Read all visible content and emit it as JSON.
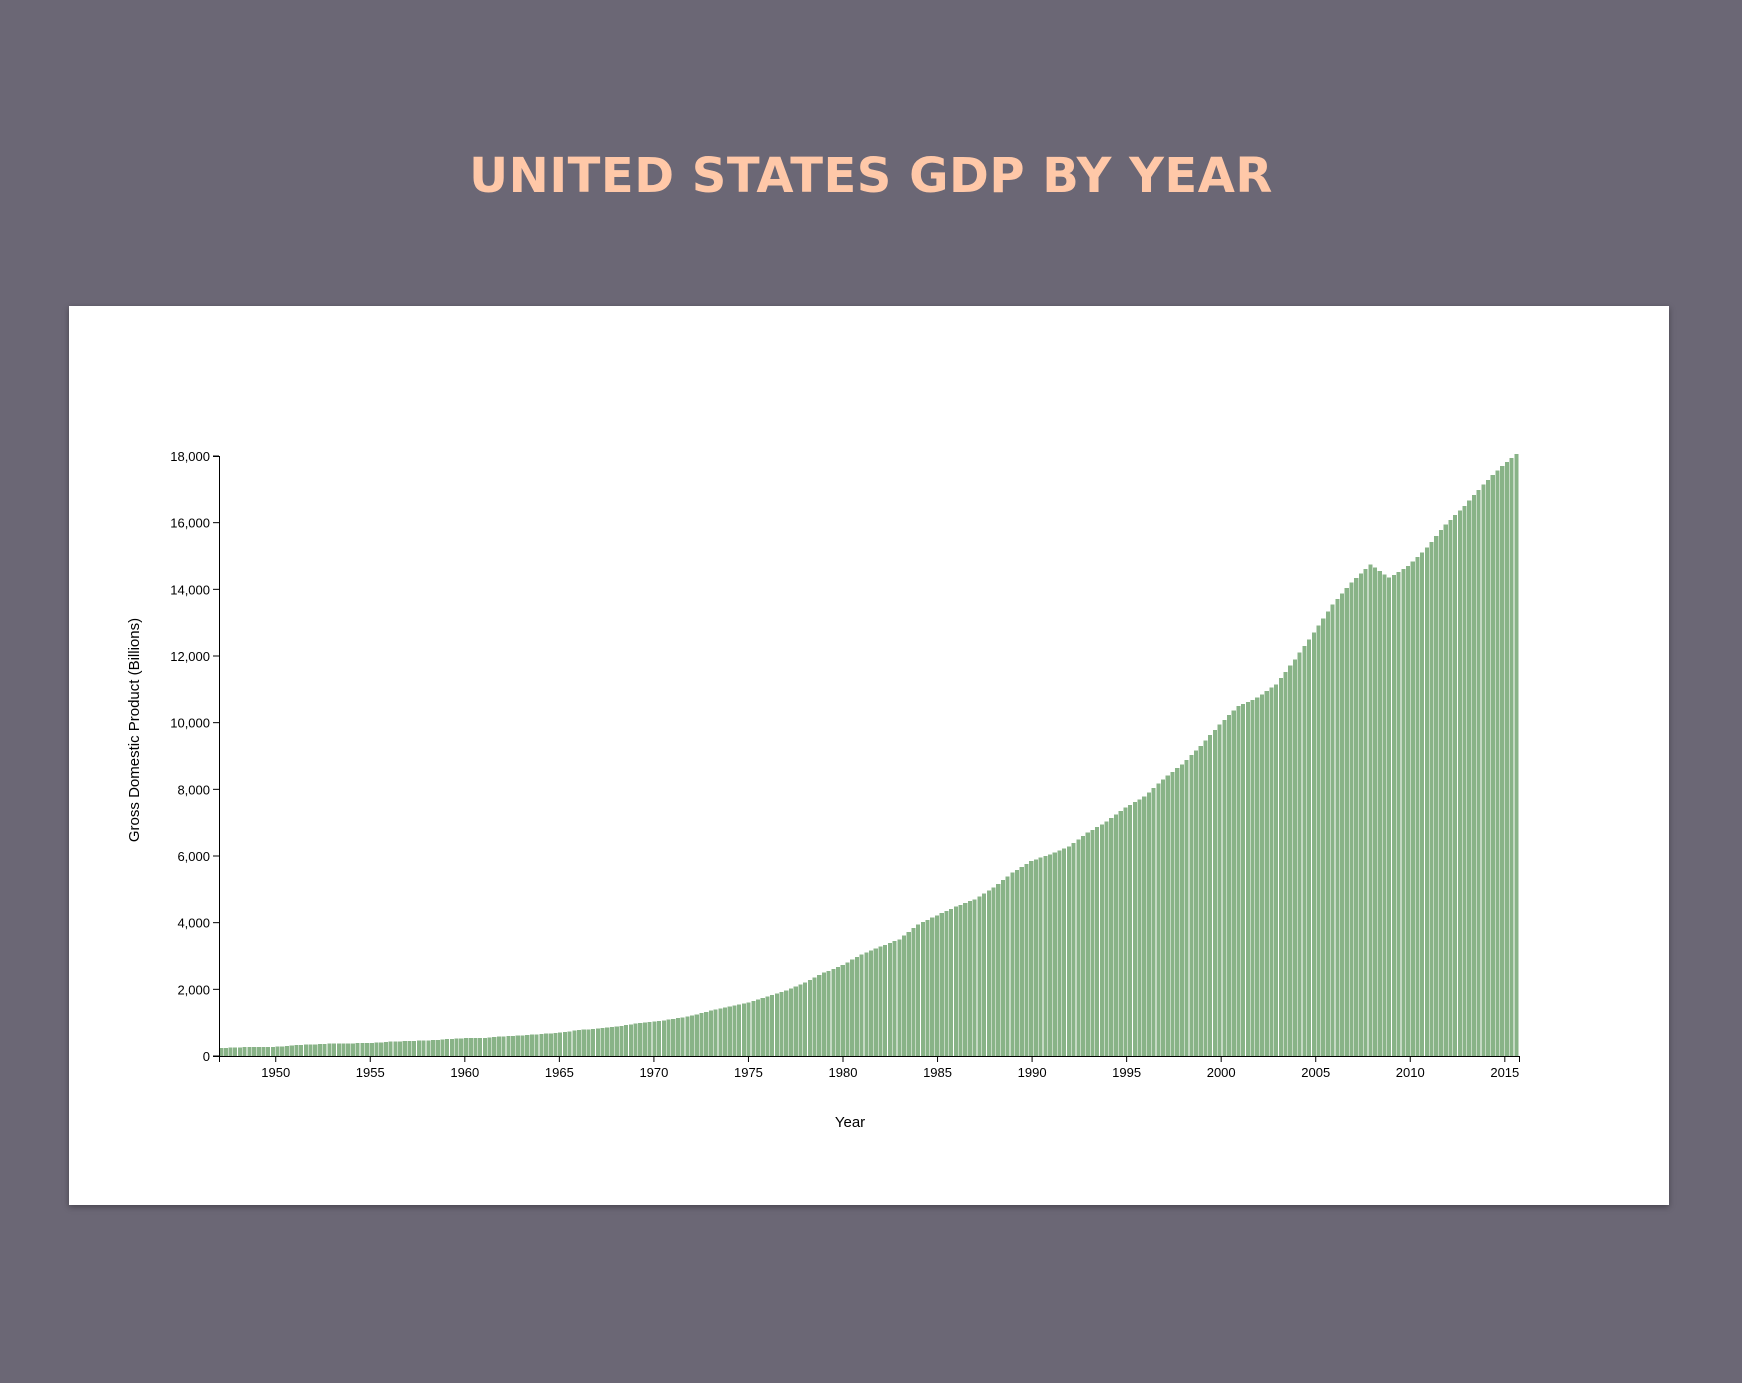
{
  "page": {
    "title": "United States GDP by Year",
    "title_color": "#ffc8a8",
    "background": "#6b6775"
  },
  "chart_data": {
    "type": "bar",
    "title": "United States GDP by Year",
    "xlabel": "Year",
    "ylabel": "Gross Domestic Product (Billions)",
    "ylim": [
      0,
      18000
    ],
    "yticks": [
      0,
      2000,
      4000,
      6000,
      8000,
      10000,
      12000,
      14000,
      16000,
      18000
    ],
    "xticks": [
      1950,
      1955,
      1960,
      1965,
      1970,
      1975,
      1980,
      1985,
      1990,
      1995,
      2000,
      2005,
      2010,
      2015
    ],
    "x_range": [
      1947.0,
      2015.75
    ],
    "bar_color": "#88b387",
    "grid": false,
    "legend": "none",
    "series": [
      {
        "frequency": "quarterly",
        "start_year": 1947,
        "yearly_anchors": [
          {
            "year": 1947,
            "gdp": 243
          },
          {
            "year": 1948,
            "gdp": 261
          },
          {
            "year": 1949,
            "gdp": 270
          },
          {
            "year": 1950,
            "gdp": 280
          },
          {
            "year": 1951,
            "gdp": 330
          },
          {
            "year": 1952,
            "gdp": 350
          },
          {
            "year": 1953,
            "gdp": 375
          },
          {
            "year": 1954,
            "gdp": 380
          },
          {
            "year": 1955,
            "gdp": 395
          },
          {
            "year": 1956,
            "gdp": 430
          },
          {
            "year": 1957,
            "gdp": 455
          },
          {
            "year": 1958,
            "gdp": 465
          },
          {
            "year": 1959,
            "gdp": 505
          },
          {
            "year": 1960,
            "gdp": 535
          },
          {
            "year": 1961,
            "gdp": 545
          },
          {
            "year": 1962,
            "gdp": 590
          },
          {
            "year": 1963,
            "gdp": 620
          },
          {
            "year": 1964,
            "gdp": 660
          },
          {
            "year": 1965,
            "gdp": 705
          },
          {
            "year": 1966,
            "gdp": 780
          },
          {
            "year": 1967,
            "gdp": 825
          },
          {
            "year": 1968,
            "gdp": 880
          },
          {
            "year": 1969,
            "gdp": 970
          },
          {
            "year": 1970,
            "gdp": 1030
          },
          {
            "year": 1971,
            "gdp": 1110
          },
          {
            "year": 1972,
            "gdp": 1210
          },
          {
            "year": 1973,
            "gdp": 1360
          },
          {
            "year": 1974,
            "gdp": 1490
          },
          {
            "year": 1975,
            "gdp": 1600
          },
          {
            "year": 1976,
            "gdp": 1780
          },
          {
            "year": 1977,
            "gdp": 1960
          },
          {
            "year": 1978,
            "gdp": 2200
          },
          {
            "year": 1979,
            "gdp": 2500
          },
          {
            "year": 1980,
            "gdp": 2730
          },
          {
            "year": 1981,
            "gdp": 3050
          },
          {
            "year": 1982,
            "gdp": 3280
          },
          {
            "year": 1983,
            "gdp": 3500
          },
          {
            "year": 1984,
            "gdp": 3950
          },
          {
            "year": 1985,
            "gdp": 4220
          },
          {
            "year": 1986,
            "gdp": 4480
          },
          {
            "year": 1987,
            "gdp": 4700
          },
          {
            "year": 1988,
            "gdp": 5050
          },
          {
            "year": 1989,
            "gdp": 5500
          },
          {
            "year": 1990,
            "gdp": 5850
          },
          {
            "year": 1991,
            "gdp": 6050
          },
          {
            "year": 1992,
            "gdp": 6280
          },
          {
            "year": 1993,
            "gdp": 6700
          },
          {
            "year": 1994,
            "gdp": 7030
          },
          {
            "year": 1995,
            "gdp": 7450
          },
          {
            "year": 1996,
            "gdp": 7780
          },
          {
            "year": 1997,
            "gdp": 8300
          },
          {
            "year": 1998,
            "gdp": 8750
          },
          {
            "year": 1999,
            "gdp": 9300
          },
          {
            "year": 2000,
            "gdp": 9950
          },
          {
            "year": 2001,
            "gdp": 10500
          },
          {
            "year": 2002,
            "gdp": 10750
          },
          {
            "year": 2003,
            "gdp": 11150
          },
          {
            "year": 2004,
            "gdp": 11900
          },
          {
            "year": 2005,
            "gdp": 12700
          },
          {
            "year": 2006,
            "gdp": 13550
          },
          {
            "year": 2007,
            "gdp": 14200
          },
          {
            "year": 2008,
            "gdp": 14750
          },
          {
            "year": 2009,
            "gdp": 14350
          },
          {
            "year": 2010,
            "gdp": 14700
          },
          {
            "year": 2011,
            "gdp": 15250
          },
          {
            "year": 2012,
            "gdp": 15950
          },
          {
            "year": 2013,
            "gdp": 16500
          },
          {
            "year": 2014,
            "gdp": 17150
          },
          {
            "year": 2015,
            "gdp": 17700
          },
          {
            "year": 2015.75,
            "gdp": 18060
          }
        ]
      }
    ]
  }
}
